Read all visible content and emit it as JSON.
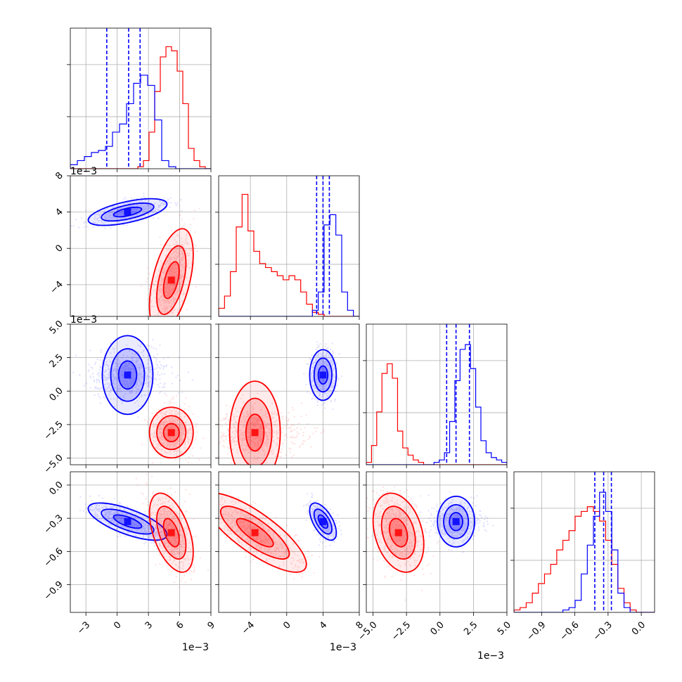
{
  "chart_data": {
    "type": "corner",
    "colors": {
      "series_a": "#0000ff",
      "series_b": "#ff0000",
      "grid": "#b0b0b0"
    },
    "params": [
      {
        "ticks": [
          -3,
          0,
          3,
          6,
          9
        ],
        "tick_labels": [
          "−3",
          "0",
          "3",
          "6",
          "9"
        ],
        "range": [
          -4.5,
          9
        ],
        "offset_label": "1e−3",
        "quantiles_blue": [
          -1.0,
          1.1,
          2.2
        ]
      },
      {
        "ticks": [
          -4,
          0,
          4,
          8
        ],
        "tick_labels": [
          "−4",
          "0",
          "4",
          "8"
        ],
        "range": [
          -7.5,
          8
        ],
        "offset_label": "1e−3",
        "quantiles_blue": [
          3.3,
          4.0,
          4.7
        ]
      },
      {
        "ticks": [
          -5.0,
          -2.5,
          0.0,
          2.5,
          5.0
        ],
        "tick_labels": [
          "−5.0",
          "−2.5",
          "0.0",
          "2.5",
          "5.0"
        ],
        "range": [
          -5.5,
          5.0
        ],
        "offset_label": "1e−3",
        "quantiles_blue": [
          0.5,
          1.2,
          2.2
        ]
      },
      {
        "ticks": [
          -0.9,
          -0.6,
          -0.3,
          0.0
        ],
        "tick_labels": [
          "−0.9",
          "−0.6",
          "−0.3",
          "0.0"
        ],
        "range": [
          -1.15,
          0.12
        ],
        "offset_label": "",
        "quantiles_blue": [
          -0.42,
          -0.34,
          -0.27
        ]
      }
    ],
    "series": [
      {
        "name": "blue",
        "color": "#0000ff",
        "mean": [
          1.0,
          4.0,
          1.2,
          -0.33
        ],
        "std": [
          1.8,
          0.7,
          0.9,
          0.08
        ],
        "corr": [
          [
            1.0,
            0.6,
            0.0,
            -0.7
          ],
          [
            0.6,
            1.0,
            0.0,
            -0.6
          ],
          [
            0.0,
            0.0,
            1.0,
            0.0
          ],
          [
            -0.7,
            -0.6,
            0.0,
            1.0
          ]
        ],
        "hist": [
          [
            2,
            4,
            6,
            8,
            9,
            11,
            18,
            22,
            32,
            42,
            46,
            41,
            24,
            4,
            1,
            0,
            0,
            0,
            0,
            0
          ],
          [
            0,
            0,
            0,
            0,
            0,
            0,
            0,
            0,
            0,
            0,
            0,
            0,
            0,
            0,
            0,
            0,
            3,
            12,
            45,
            50,
            40,
            12,
            3,
            0
          ],
          [
            0,
            0,
            0,
            0,
            0,
            0,
            0,
            0,
            0,
            0,
            0,
            0,
            0,
            1,
            2,
            5,
            18,
            35,
            48,
            50,
            40,
            24,
            10,
            5,
            3,
            2,
            1
          ],
          [
            0,
            0,
            0,
            0,
            0,
            0,
            0,
            0,
            1,
            2,
            5,
            16,
            28,
            40,
            50,
            42,
            26,
            8,
            2,
            0,
            0,
            0,
            0
          ]
        ]
      },
      {
        "name": "red",
        "color": "#ff0000",
        "mean": [
          5.2,
          -3.5,
          -3.1,
          -0.43
        ],
        "std": [
          1.0,
          2.7,
          0.9,
          0.17
        ],
        "corr": [
          [
            1.0,
            0.5,
            0.0,
            -0.5
          ],
          [
            0.5,
            1.0,
            0.0,
            -0.8
          ],
          [
            0.0,
            0.0,
            1.0,
            -0.3
          ],
          [
            -0.5,
            -0.8,
            -0.3,
            1.0
          ]
        ],
        "hist": [
          [
            0,
            0,
            0,
            0,
            0,
            0,
            0,
            0,
            0,
            0,
            0,
            0,
            1,
            4,
            18,
            38,
            55,
            60,
            58,
            48,
            32,
            10,
            4,
            1,
            0
          ],
          [
            4,
            10,
            22,
            44,
            60,
            42,
            32,
            26,
            24,
            22,
            20,
            18,
            20,
            18,
            12,
            6,
            2,
            1,
            0,
            0,
            0,
            0,
            0,
            0
          ],
          [
            1,
            8,
            22,
            38,
            42,
            36,
            14,
            7,
            4,
            2,
            1,
            0,
            0,
            0,
            0,
            0,
            0,
            0,
            0,
            0,
            0,
            0,
            0,
            0,
            0,
            0,
            0
          ],
          [
            1,
            2,
            4,
            8,
            12,
            16,
            20,
            26,
            30,
            34,
            40,
            42,
            44,
            42,
            38,
            30,
            20,
            10,
            4,
            1,
            0,
            0,
            0
          ]
        ]
      }
    ]
  }
}
